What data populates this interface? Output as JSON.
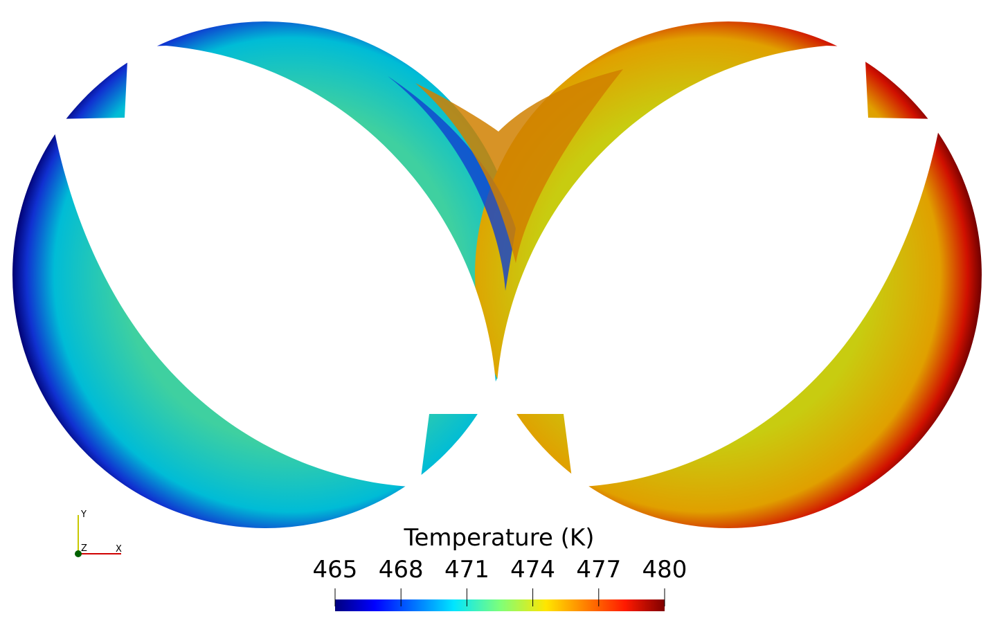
{
  "colorbar": {
    "title": "Temperature (K)",
    "range": [
      465,
      480
    ],
    "ticks": [
      465,
      468,
      471,
      474,
      477,
      480
    ]
  },
  "axes": {
    "y": "Y",
    "z": "Z",
    "x": "X"
  }
}
